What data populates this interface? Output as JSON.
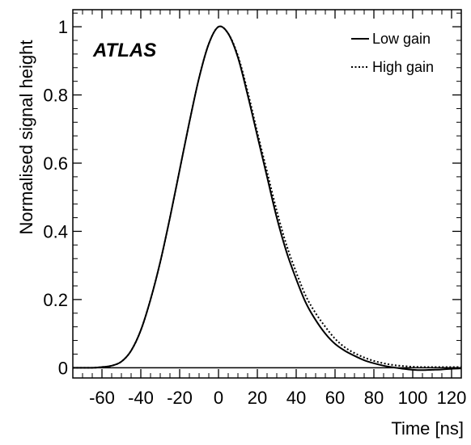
{
  "chart_data": {
    "type": "line",
    "title": "",
    "annotation": "ATLAS",
    "xlabel": "Time [ns]",
    "ylabel": "Normalised signal height",
    "xlim": [
      -75,
      125
    ],
    "ylim": [
      -0.03,
      1.05
    ],
    "x_ticks": [
      -60,
      -40,
      -20,
      0,
      20,
      40,
      60,
      80,
      100,
      120
    ],
    "x_tick_labels": [
      "-60",
      "-40",
      "-20",
      "0",
      "20",
      "40",
      "60",
      "80",
      "100",
      "120"
    ],
    "y_ticks": [
      0,
      0.2,
      0.4,
      0.6,
      0.8,
      1
    ],
    "y_tick_labels": [
      "0",
      "0.2",
      "0.4",
      "0.6",
      "0.8",
      "1"
    ],
    "grid": false,
    "legend_position": "top-right",
    "series": [
      {
        "name": "Low gain",
        "line_style": "solid",
        "x": [
          -75,
          -65,
          -60,
          -55,
          -50,
          -45,
          -40,
          -35,
          -30,
          -25,
          -20,
          -15,
          -10,
          -5,
          0,
          5,
          10,
          15,
          20,
          25,
          30,
          35,
          40,
          45,
          50,
          55,
          60,
          65,
          70,
          75,
          80,
          85,
          90,
          95,
          100,
          105,
          110,
          115,
          120,
          125
        ],
        "values": [
          0,
          0,
          0.002,
          0.006,
          0.018,
          0.05,
          0.11,
          0.2,
          0.31,
          0.44,
          0.58,
          0.72,
          0.85,
          0.95,
          1.0,
          0.98,
          0.91,
          0.8,
          0.68,
          0.56,
          0.44,
          0.34,
          0.26,
          0.19,
          0.14,
          0.1,
          0.07,
          0.05,
          0.035,
          0.022,
          0.013,
          0.006,
          0.001,
          -0.003,
          -0.006,
          -0.007,
          -0.006,
          -0.005,
          -0.003,
          -0.002
        ]
      },
      {
        "name": "High gain",
        "line_style": "dotted",
        "x": [
          -75,
          -65,
          -60,
          -55,
          -50,
          -45,
          -40,
          -35,
          -30,
          -25,
          -20,
          -15,
          -10,
          -5,
          0,
          5,
          10,
          15,
          20,
          25,
          30,
          35,
          40,
          45,
          50,
          55,
          60,
          65,
          70,
          75,
          80,
          85,
          90,
          95,
          100,
          105,
          110,
          115,
          120,
          125
        ],
        "values": [
          0,
          0,
          0.002,
          0.006,
          0.018,
          0.05,
          0.11,
          0.2,
          0.31,
          0.44,
          0.58,
          0.72,
          0.85,
          0.95,
          1.0,
          0.98,
          0.915,
          0.81,
          0.69,
          0.575,
          0.46,
          0.36,
          0.28,
          0.21,
          0.16,
          0.12,
          0.085,
          0.06,
          0.043,
          0.03,
          0.02,
          0.013,
          0.008,
          0.005,
          0.003,
          0.002,
          0.002,
          0.002,
          0.002,
          0.002
        ]
      }
    ]
  }
}
